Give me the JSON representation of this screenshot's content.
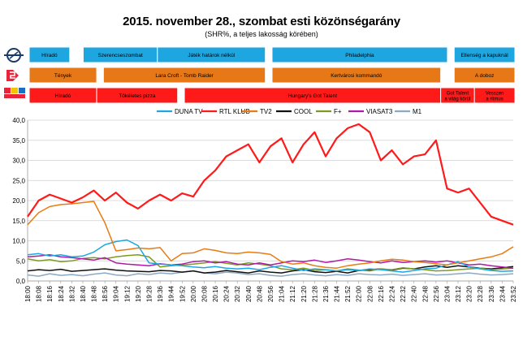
{
  "title": "2015. november 28., szombat esti közönségarány",
  "subtitle": "(SHR%, a teljes lakosság körében)",
  "colors": {
    "duna": "#1ca7e4",
    "rtl": "#ff1a1a",
    "tv2": "#e87b14",
    "cool": "#111111",
    "fplus": "#7d9a22",
    "viasat3": "#b01aa6",
    "m1": "#8aa9c6",
    "block_duna": "#1ea6e0",
    "block_tv2": "#e67817",
    "block_rtl": "#ff1a1a"
  },
  "program_blocks": {
    "duna_icon": "duna-logo-icon",
    "tv2_icon": "tv2-logo-icon",
    "rtl_icon": "rtl-klub-logo-icon",
    "duna": [
      {
        "label": "Híradó",
        "start": 0,
        "end": 6,
        "gap_after": true
      },
      {
        "label": "Szerencseszombat",
        "start": 8,
        "end": 19
      },
      {
        "label": "Játék határok nélkül",
        "start": 19,
        "end": 35,
        "gap_after": true
      },
      {
        "label": "Philadelphia",
        "start": 36,
        "end": 62,
        "gap_after": true
      },
      {
        "label": "Ellenség a kapuknál",
        "start": 63,
        "end": 72
      }
    ],
    "tv2": [
      {
        "label": "Tények",
        "start": 0,
        "end": 10,
        "gap_after": true
      },
      {
        "label": "Lara Croft - Tomb Raider",
        "start": 11,
        "end": 35,
        "gap_after": true
      },
      {
        "label": "Kertvárosi kommandó",
        "start": 36,
        "end": 61,
        "gap_after": true
      },
      {
        "label": "A doboz",
        "start": 63,
        "end": 72
      }
    ],
    "rtl": [
      {
        "label": "Híradó",
        "start": 0,
        "end": 10
      },
      {
        "label": "Tökéletes pizza",
        "start": 10,
        "end": 22,
        "gap_after": true
      },
      {
        "label": "Hungary's Got Talent",
        "start": 23,
        "end": 61
      },
      {
        "label": "Got Talent\na világ körül",
        "start": 61,
        "end": 66
      },
      {
        "label": "Vesszen\na ritmus",
        "start": 66,
        "end": 72
      }
    ]
  },
  "chart_data": {
    "type": "line",
    "title": "2015. november 28., szombat esti közönségarány",
    "subtitle": "(SHR%, a teljes lakosság körében)",
    "xlabel": "",
    "ylabel": "",
    "ylim": [
      0,
      40
    ],
    "yticks": [
      "0,0",
      "5,0",
      "10,0",
      "15,0",
      "20,0",
      "25,0",
      "30,0",
      "35,0",
      "40,0"
    ],
    "grid": true,
    "legend_position": "top",
    "x": [
      "18:00",
      "18:08",
      "18:16",
      "18:24",
      "18:32",
      "18:40",
      "18:48",
      "18:56",
      "19:04",
      "19:12",
      "19:20",
      "19:28",
      "19:36",
      "19:44",
      "19:52",
      "20:00",
      "20:08",
      "20:16",
      "20:24",
      "20:32",
      "20:40",
      "20:48",
      "20:56",
      "21:04",
      "21:12",
      "21:20",
      "21:28",
      "21:36",
      "21:44",
      "21:52",
      "22:00",
      "22:08",
      "22:16",
      "22:24",
      "22:32",
      "22:40",
      "22:48",
      "22:56",
      "23:04",
      "23:12",
      "23:20",
      "23:28",
      "23:36",
      "23:44",
      "23:52"
    ],
    "series": [
      {
        "name": "DUNA TV",
        "color_key": "duna",
        "values": [
          6.5,
          6.8,
          6.2,
          6.5,
          6.0,
          6.2,
          7.2,
          9.0,
          9.8,
          10.2,
          8.8,
          4.5,
          4.2,
          4.0,
          3.8,
          3.5,
          3.3,
          3.6,
          3.2,
          3.0,
          3.2,
          2.8,
          3.4,
          3.8,
          3.2,
          2.6,
          3.0,
          2.8,
          2.5,
          2.8,
          2.6,
          3.0,
          2.8,
          2.5,
          2.2,
          2.6,
          3.0,
          3.2,
          4.0,
          4.8,
          3.5,
          3.0,
          2.6,
          2.4,
          2.5
        ]
      },
      {
        "name": "RTL KLUB",
        "color_key": "rtl",
        "values": [
          16.0,
          20.0,
          21.5,
          20.5,
          19.5,
          20.8,
          22.5,
          20.0,
          22.0,
          19.5,
          18.0,
          20.0,
          21.5,
          20.0,
          21.8,
          21.0,
          25.0,
          27.5,
          31.0,
          32.5,
          34.0,
          29.5,
          33.5,
          35.5,
          29.5,
          34.0,
          37.0,
          31.0,
          35.5,
          38.0,
          39.0,
          37.0,
          30.0,
          32.5,
          29.0,
          31.0,
          31.5,
          35.0,
          23.0,
          22.0,
          23.0,
          19.5,
          16.0,
          15.0,
          14.0
        ]
      },
      {
        "name": "TV2",
        "color_key": "tv2",
        "values": [
          14.0,
          17.0,
          18.5,
          19.0,
          19.2,
          19.5,
          19.8,
          14.5,
          7.5,
          7.8,
          8.2,
          8.0,
          8.3,
          5.0,
          6.8,
          7.0,
          8.0,
          7.6,
          7.0,
          6.8,
          7.2,
          7.0,
          6.6,
          4.8,
          4.2,
          4.5,
          3.8,
          3.4,
          3.2,
          3.8,
          4.2,
          4.5,
          5.0,
          5.4,
          5.2,
          4.8,
          4.6,
          4.3,
          4.0,
          4.5,
          5.0,
          5.5,
          6.0,
          6.8,
          8.5
        ]
      },
      {
        "name": "COOL",
        "color_key": "cool",
        "values": [
          2.5,
          2.8,
          2.6,
          2.9,
          2.4,
          2.6,
          2.8,
          3.0,
          2.7,
          2.5,
          2.4,
          2.3,
          2.6,
          2.5,
          2.2,
          2.5,
          2.0,
          2.2,
          2.6,
          2.3,
          2.0,
          2.5,
          2.2,
          2.0,
          2.5,
          2.8,
          2.3,
          2.1,
          2.4,
          2.0,
          2.6,
          2.8,
          3.0,
          2.7,
          3.2,
          3.0,
          3.5,
          3.8,
          3.4,
          3.8,
          3.5,
          3.2,
          3.0,
          3.3,
          3.6
        ]
      },
      {
        "name": "F+",
        "color_key": "fplus",
        "values": [
          5.5,
          5.0,
          5.3,
          4.8,
          5.0,
          5.6,
          5.8,
          5.5,
          6.0,
          6.3,
          6.5,
          6.0,
          3.5,
          3.8,
          4.0,
          4.2,
          4.5,
          4.8,
          4.4,
          4.0,
          4.5,
          4.2,
          3.8,
          3.0,
          2.8,
          3.2,
          2.6,
          2.8,
          2.5,
          3.0,
          2.7,
          2.5,
          3.0,
          2.8,
          3.3,
          3.0,
          2.8,
          2.5,
          2.6,
          2.8,
          3.0,
          3.2,
          2.8,
          3.0,
          3.2
        ]
      },
      {
        "name": "VIASAT3",
        "color_key": "viasat3",
        "values": [
          6.0,
          6.2,
          6.5,
          6.0,
          5.8,
          5.5,
          5.2,
          5.8,
          4.5,
          4.2,
          4.0,
          3.8,
          4.3,
          4.0,
          4.2,
          4.8,
          5.0,
          4.5,
          4.8,
          4.2,
          4.0,
          4.5,
          4.0,
          4.5,
          5.0,
          4.8,
          5.2,
          4.6,
          5.0,
          5.5,
          5.2,
          4.8,
          4.5,
          5.0,
          4.6,
          4.8,
          5.0,
          4.7,
          5.0,
          4.5,
          4.0,
          4.2,
          3.8,
          3.5,
          3.2
        ]
      },
      {
        "name": "M1",
        "color_key": "m1",
        "values": [
          1.5,
          1.2,
          1.8,
          1.4,
          1.6,
          1.3,
          1.7,
          2.0,
          1.5,
          1.3,
          1.8,
          1.6,
          2.0,
          1.8,
          2.2,
          2.5,
          2.0,
          1.8,
          2.2,
          2.0,
          1.6,
          1.8,
          1.4,
          1.2,
          1.6,
          1.8,
          1.5,
          1.3,
          1.6,
          1.4,
          1.8,
          1.6,
          1.5,
          1.7,
          1.4,
          1.6,
          1.8,
          1.5,
          1.6,
          1.8,
          2.0,
          1.7,
          1.5,
          1.6,
          1.8
        ]
      }
    ]
  }
}
